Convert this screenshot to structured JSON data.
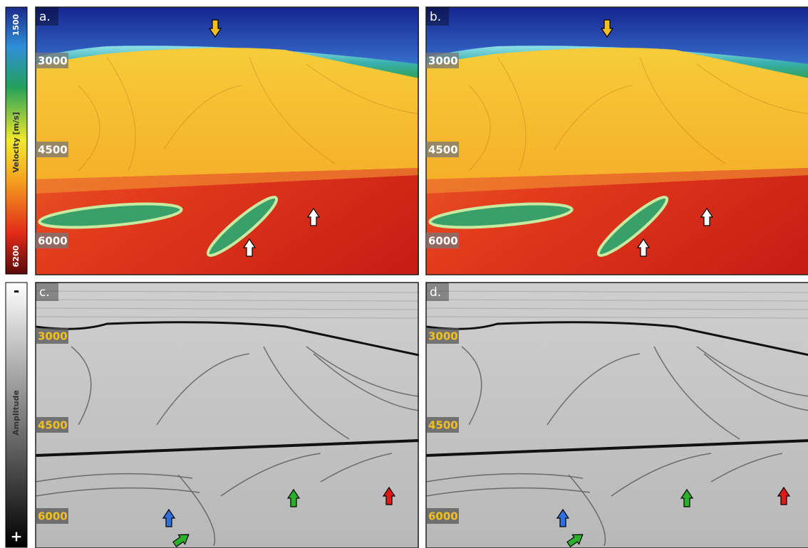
{
  "velocity_colorbar": {
    "top": "1500",
    "label": "Velocity [m/s]",
    "bottom": "6200"
  },
  "amplitude_colorbar": {
    "top": "-",
    "label": "Amplitude",
    "bottom": "+"
  },
  "depth_labels": [
    "3000",
    "4500",
    "6000"
  ],
  "panels": [
    {
      "label": "a."
    },
    {
      "label": "b."
    },
    {
      "label": "c."
    },
    {
      "label": "d."
    }
  ]
}
